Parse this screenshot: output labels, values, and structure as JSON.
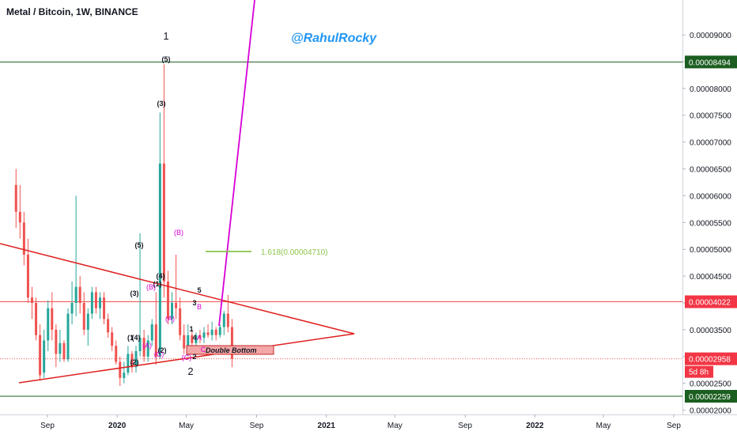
{
  "header": {
    "title": "Metal / Bitcoin, 1W, BINANCE"
  },
  "watermark": "@RahulRocky",
  "colors": {
    "up": "#26a69a",
    "down": "#ef5350",
    "triangle": "#e02020",
    "target": "#d500d5",
    "fib": "#8bc34a",
    "wave": "#d500d5",
    "resistance": "#ef5350",
    "support": "#1b5e20"
  },
  "chart_data": {
    "type": "candlestick",
    "symbol": "Metal / Bitcoin",
    "timeframe": "1W",
    "exchange": "BINANCE",
    "ylim": [
      1.92e-05,
      9.65e-05
    ],
    "y_ticks": [
      "0.00002000",
      "0.00002500",
      "0.00003000",
      "0.00003500",
      "0.00004000",
      "0.00004500",
      "0.00005000",
      "0.00005500",
      "0.00006000",
      "0.00006500",
      "0.00007000",
      "0.00007500",
      "0.00008000",
      "0.00008500",
      "0.00009000"
    ],
    "x_ticks": [
      {
        "label": "Sep",
        "date": "2019-09-01"
      },
      {
        "label": "2020",
        "date": "2020-01-01"
      },
      {
        "label": "May",
        "date": "2020-05-01"
      },
      {
        "label": "Sep",
        "date": "2020-09-01"
      },
      {
        "label": "2021",
        "date": "2021-01-01"
      },
      {
        "label": "May",
        "date": "2021-05-01"
      },
      {
        "label": "Sep",
        "date": "2021-09-01"
      },
      {
        "label": "2022",
        "date": "2022-01-01"
      },
      {
        "label": "May",
        "date": "2022-05-01"
      },
      {
        "label": "Sep",
        "date": "2022-09-01"
      }
    ],
    "candles": [
      {
        "date": "2019-07-08",
        "o": 6.2e-05,
        "h": 6.5e-05,
        "l": 5.4e-05,
        "c": 5.7e-05
      },
      {
        "date": "2019-07-15",
        "o": 5.7e-05,
        "h": 6.2e-05,
        "l": 5.2e-05,
        "c": 5.5e-05
      },
      {
        "date": "2019-07-22",
        "o": 5.5e-05,
        "h": 5.7e-05,
        "l": 4.7e-05,
        "c": 4.9e-05
      },
      {
        "date": "2019-07-29",
        "o": 4.9e-05,
        "h": 5.2e-05,
        "l": 4e-05,
        "c": 4.1e-05
      },
      {
        "date": "2019-08-05",
        "o": 4.1e-05,
        "h": 4.3e-05,
        "l": 3.7e-05,
        "c": 4e-05
      },
      {
        "date": "2019-08-12",
        "o": 4e-05,
        "h": 4.1e-05,
        "l": 3.3e-05,
        "c": 3.4e-05
      },
      {
        "date": "2019-08-19",
        "o": 3.4e-05,
        "h": 3.6e-05,
        "l": 2.55e-05,
        "c": 2.65e-05
      },
      {
        "date": "2019-08-26",
        "o": 2.7e-05,
        "h": 3.5e-05,
        "l": 2.6e-05,
        "c": 3.3e-05
      },
      {
        "date": "2019-09-02",
        "o": 3.3e-05,
        "h": 4.05e-05,
        "l": 3.1e-05,
        "c": 3.9e-05
      },
      {
        "date": "2019-09-09",
        "o": 3.9e-05,
        "h": 4.2e-05,
        "l": 3.3e-05,
        "c": 3.5e-05
      },
      {
        "date": "2019-09-16",
        "o": 3.5e-05,
        "h": 3.6e-05,
        "l": 2.8e-05,
        "c": 3.05e-05
      },
      {
        "date": "2019-09-23",
        "o": 3.05e-05,
        "h": 3.5e-05,
        "l": 2.9e-05,
        "c": 3.25e-05
      },
      {
        "date": "2019-09-30",
        "o": 3.25e-05,
        "h": 3.3e-05,
        "l": 2.9e-05,
        "c": 2.95e-05
      },
      {
        "date": "2019-10-07",
        "o": 2.95e-05,
        "h": 3.9e-05,
        "l": 2.9e-05,
        "c": 3.8e-05
      },
      {
        "date": "2019-10-14",
        "o": 3.8e-05,
        "h": 4.4e-05,
        "l": 3.6e-05,
        "c": 4e-05
      },
      {
        "date": "2019-10-21",
        "o": 4e-05,
        "h": 6e-05,
        "l": 3.75e-05,
        "c": 4.3e-05
      },
      {
        "date": "2019-10-28",
        "o": 4.3e-05,
        "h": 4.5e-05,
        "l": 3.8e-05,
        "c": 4e-05
      },
      {
        "date": "2019-11-04",
        "o": 4e-05,
        "h": 4.2e-05,
        "l": 3.4e-05,
        "c": 3.5e-05
      },
      {
        "date": "2019-11-11",
        "o": 3.5e-05,
        "h": 3.9e-05,
        "l": 3.2e-05,
        "c": 3.8e-05
      },
      {
        "date": "2019-11-18",
        "o": 3.8e-05,
        "h": 4.3e-05,
        "l": 3.7e-05,
        "c": 4.2e-05
      },
      {
        "date": "2019-11-25",
        "o": 4.2e-05,
        "h": 4.3e-05,
        "l": 3.8e-05,
        "c": 3.9e-05
      },
      {
        "date": "2019-12-02",
        "o": 3.9e-05,
        "h": 4.2e-05,
        "l": 3.7e-05,
        "c": 4.1e-05
      },
      {
        "date": "2019-12-09",
        "o": 4.1e-05,
        "h": 4.2e-05,
        "l": 3.6e-05,
        "c": 3.7e-05
      },
      {
        "date": "2019-12-16",
        "o": 3.7e-05,
        "h": 3.8e-05,
        "l": 3.35e-05,
        "c": 3.45e-05
      },
      {
        "date": "2019-12-23",
        "o": 3.45e-05,
        "h": 3.55e-05,
        "l": 3.1e-05,
        "c": 3.2e-05
      },
      {
        "date": "2019-12-30",
        "o": 3.2e-05,
        "h": 3.3e-05,
        "l": 2.85e-05,
        "c": 2.9e-05
      },
      {
        "date": "2020-01-06",
        "o": 2.9e-05,
        "h": 3e-05,
        "l": 2.45e-05,
        "c": 2.6e-05
      },
      {
        "date": "2020-01-13",
        "o": 2.6e-05,
        "h": 2.9e-05,
        "l": 2.5e-05,
        "c": 2.7e-05
      },
      {
        "date": "2020-01-20",
        "o": 2.7e-05,
        "h": 3.2e-05,
        "l": 2.65e-05,
        "c": 3.05e-05
      },
      {
        "date": "2020-01-27",
        "o": 3.05e-05,
        "h": 3.1e-05,
        "l": 2.7e-05,
        "c": 2.8e-05
      },
      {
        "date": "2020-02-03",
        "o": 2.8e-05,
        "h": 3.2e-05,
        "l": 2.7e-05,
        "c": 3.1e-05
      },
      {
        "date": "2020-02-10",
        "o": 3.1e-05,
        "h": 5.3e-05,
        "l": 3e-05,
        "c": 3.35e-05
      },
      {
        "date": "2020-02-17",
        "o": 3.35e-05,
        "h": 3.5e-05,
        "l": 2.9e-05,
        "c": 3e-05
      },
      {
        "date": "2020-02-24",
        "o": 3e-05,
        "h": 3.4e-05,
        "l": 2.9e-05,
        "c": 3.3e-05
      },
      {
        "date": "2020-03-02",
        "o": 3.3e-05,
        "h": 3.7e-05,
        "l": 3.2e-05,
        "c": 3.6e-05
      },
      {
        "date": "2020-03-09",
        "o": 3.6e-05,
        "h": 4.2e-05,
        "l": 2.85e-05,
        "c": 3e-05
      },
      {
        "date": "2020-03-16",
        "o": 3e-05,
        "h": 7.55e-05,
        "l": 2.95e-05,
        "c": 6.6e-05
      },
      {
        "date": "2020-03-23",
        "o": 6.6e-05,
        "h": 8.45e-05,
        "l": 4.1e-05,
        "c": 4.4e-05
      },
      {
        "date": "2020-03-30",
        "o": 4.4e-05,
        "h": 4.6e-05,
        "l": 3.6e-05,
        "c": 3.7e-05
      },
      {
        "date": "2020-04-06",
        "o": 3.7e-05,
        "h": 4.2e-05,
        "l": 3.6e-05,
        "c": 4e-05
      },
      {
        "date": "2020-04-13",
        "o": 4e-05,
        "h": 4.9e-05,
        "l": 3.7e-05,
        "c": 3.9e-05
      },
      {
        "date": "2020-04-20",
        "o": 3.9e-05,
        "h": 4.1e-05,
        "l": 3.3e-05,
        "c": 3.4e-05
      },
      {
        "date": "2020-04-27",
        "o": 3.4e-05,
        "h": 3.6e-05,
        "l": 3.05e-05,
        "c": 3.15e-05
      },
      {
        "date": "2020-05-04",
        "o": 3.15e-05,
        "h": 3.6e-05,
        "l": 3e-05,
        "c": 3.4e-05
      },
      {
        "date": "2020-05-11",
        "o": 3.4e-05,
        "h": 3.5e-05,
        "l": 3.1e-05,
        "c": 3.25e-05
      },
      {
        "date": "2020-05-18",
        "o": 3.25e-05,
        "h": 3.45e-05,
        "l": 3.15e-05,
        "c": 3.4e-05
      },
      {
        "date": "2020-05-25",
        "o": 3.4e-05,
        "h": 3.5e-05,
        "l": 3.25e-05,
        "c": 3.35e-05
      },
      {
        "date": "2020-06-01",
        "o": 3.35e-05,
        "h": 3.55e-05,
        "l": 3.25e-05,
        "c": 3.45e-05
      },
      {
        "date": "2020-06-08",
        "o": 3.45e-05,
        "h": 3.6e-05,
        "l": 3.35e-05,
        "c": 3.4e-05
      },
      {
        "date": "2020-06-15",
        "o": 3.4e-05,
        "h": 3.65e-05,
        "l": 3.3e-05,
        "c": 3.5e-05
      },
      {
        "date": "2020-06-22",
        "o": 3.5e-05,
        "h": 3.55e-05,
        "l": 3.3e-05,
        "c": 3.4e-05
      },
      {
        "date": "2020-06-29",
        "o": 3.4e-05,
        "h": 3.6e-05,
        "l": 3.35e-05,
        "c": 3.55e-05
      },
      {
        "date": "2020-07-06",
        "o": 3.55e-05,
        "h": 3.85e-05,
        "l": 3.4e-05,
        "c": 3.8e-05
      },
      {
        "date": "2020-07-13",
        "o": 3.8e-05,
        "h": 4.15e-05,
        "l": 3.45e-05,
        "c": 3.55e-05
      },
      {
        "date": "2020-07-20",
        "o": 3.55e-05,
        "h": 3.7e-05,
        "l": 2.8e-05,
        "c": 2.96e-05
      }
    ],
    "annotations": {
      "resistance_level": "0.00004022",
      "upper_level": "0.00008494",
      "lower_level": "0.00002259",
      "current_price": "0.00002958",
      "countdown": "5d 8h",
      "fib_extension": "1.618(0.00004710)",
      "pattern_label": "Double Bottom",
      "wave_labels": [
        "1",
        "2",
        "(5)",
        "(3)",
        "(4)",
        "(1)",
        "(3)",
        "(5)",
        "(1",
        "(4)",
        "(2)",
        "(2)",
        "(A)",
        "(B)",
        "(C)",
        "(A)",
        "(B)",
        "(C)",
        "(A)",
        "(4)",
        "1",
        "2",
        "3",
        "5",
        "4",
        "A",
        "B",
        "C"
      ]
    }
  }
}
